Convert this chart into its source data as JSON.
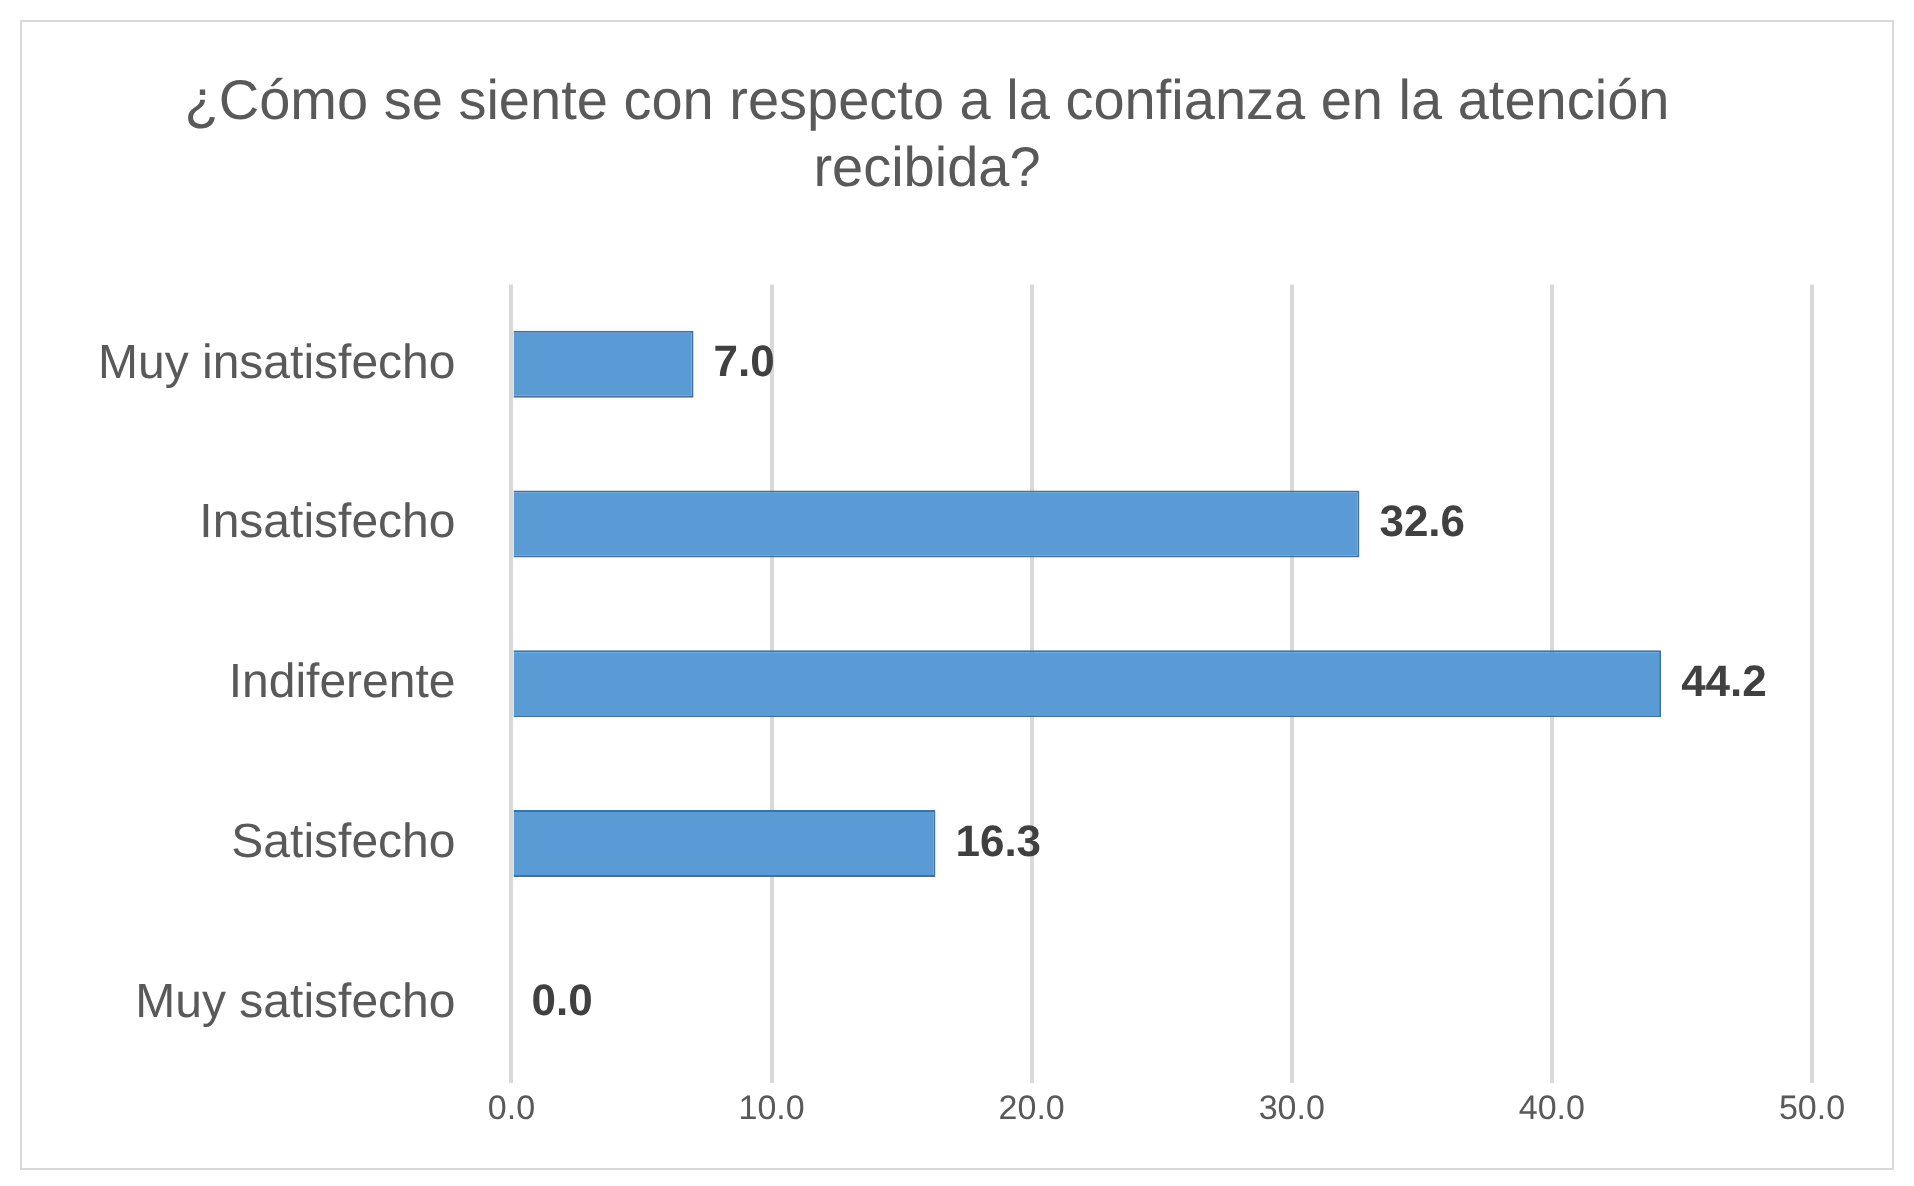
{
  "chart_data": {
    "type": "bar",
    "orientation": "horizontal",
    "title": "¿Cómo se siente con respecto a la confianza en la atención recibida?",
    "categories": [
      "Muy insatisfecho",
      "Insatisfecho",
      "Indiferente",
      "Satisfecho",
      "Muy satisfecho"
    ],
    "values": [
      7.0,
      32.6,
      44.2,
      16.3,
      0.0
    ],
    "value_labels": [
      "7.0",
      "32.6",
      "44.2",
      "16.3",
      "0.0"
    ],
    "color": "#5b9bd5",
    "xlim": [
      0,
      50
    ],
    "xticks": [
      {
        "value": 0,
        "label": "0.0"
      },
      {
        "value": 10,
        "label": "10.0"
      },
      {
        "value": 20,
        "label": "20.0"
      },
      {
        "value": 30,
        "label": "30.0"
      },
      {
        "value": 40,
        "label": "40.0"
      },
      {
        "value": 50,
        "label": "50.0"
      }
    ],
    "grid": "x",
    "legend": false
  }
}
